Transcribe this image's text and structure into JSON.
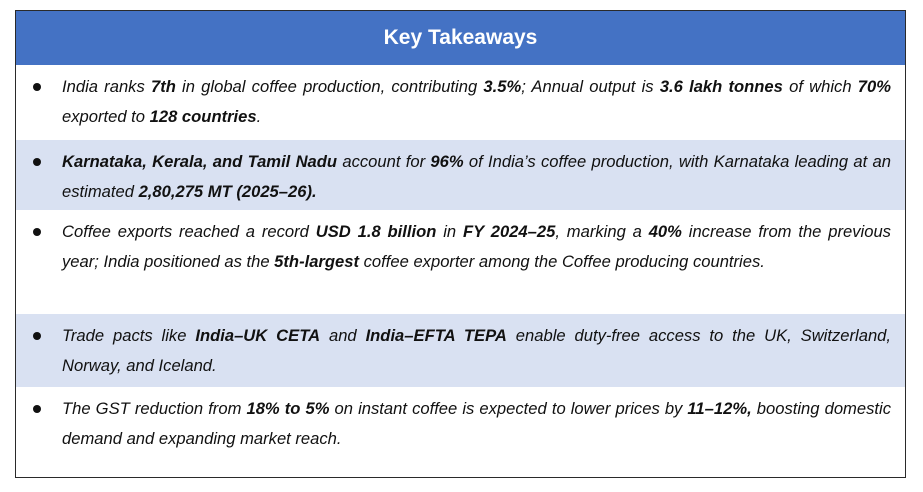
{
  "title": "Key Takeaways",
  "items": [
    {
      "segments": [
        {
          "t": "India ranks ",
          "b": false
        },
        {
          "t": "7th",
          "b": true
        },
        {
          "t": " in global coffee production, contributing ",
          "b": false
        },
        {
          "t": "3.5%",
          "b": true
        },
        {
          "t": "; Annual output is ",
          "b": false
        },
        {
          "t": "3.6 lakh tonnes",
          "b": true
        },
        {
          "t": " of which ",
          "b": false
        },
        {
          "t": "70%",
          "b": true
        },
        {
          "t": " exported to ",
          "b": false
        },
        {
          "t": "128 countries",
          "b": true
        },
        {
          "t": ".",
          "b": false
        }
      ]
    },
    {
      "segments": [
        {
          "t": "Karnataka, Kerala, and Tamil Nadu",
          "b": true
        },
        {
          "t": " account for ",
          "b": false
        },
        {
          "t": "96%",
          "b": true
        },
        {
          "t": " of India’s coffee production, with Karnataka leading at an estimated ",
          "b": false
        },
        {
          "t": "2,80,275 MT (2025–26).",
          "b": true
        }
      ]
    },
    {
      "segments": [
        {
          "t": "Coffee exports reached a record ",
          "b": false
        },
        {
          "t": "USD 1.8 billion",
          "b": true
        },
        {
          "t": " in ",
          "b": false
        },
        {
          "t": "FY 2024–25",
          "b": true
        },
        {
          "t": ", marking a ",
          "b": false
        },
        {
          "t": "40%",
          "b": true
        },
        {
          "t": " increase from the previous year; India positioned as the ",
          "b": false
        },
        {
          "t": "5th-largest",
          "b": true
        },
        {
          "t": " coffee exporter among the Coffee producing countries.",
          "b": false
        }
      ]
    },
    {
      "segments": [
        {
          "t": "Trade pacts like ",
          "b": false
        },
        {
          "t": "India–UK CETA",
          "b": true
        },
        {
          "t": " and ",
          "b": false
        },
        {
          "t": "India–EFTA TEPA",
          "b": true
        },
        {
          "t": " enable duty-free access to the UK, Switzerland, Norway, and Iceland.",
          "b": false
        }
      ]
    },
    {
      "segments": [
        {
          "t": "The GST reduction from ",
          "b": false
        },
        {
          "t": "18% to 5%",
          "b": true
        },
        {
          "t": " on instant coffee is expected to lower prices by ",
          "b": false
        },
        {
          "t": "11–12%,",
          "b": true
        },
        {
          "t": " boosting domestic demand and expanding market reach.",
          "b": false
        }
      ]
    }
  ]
}
